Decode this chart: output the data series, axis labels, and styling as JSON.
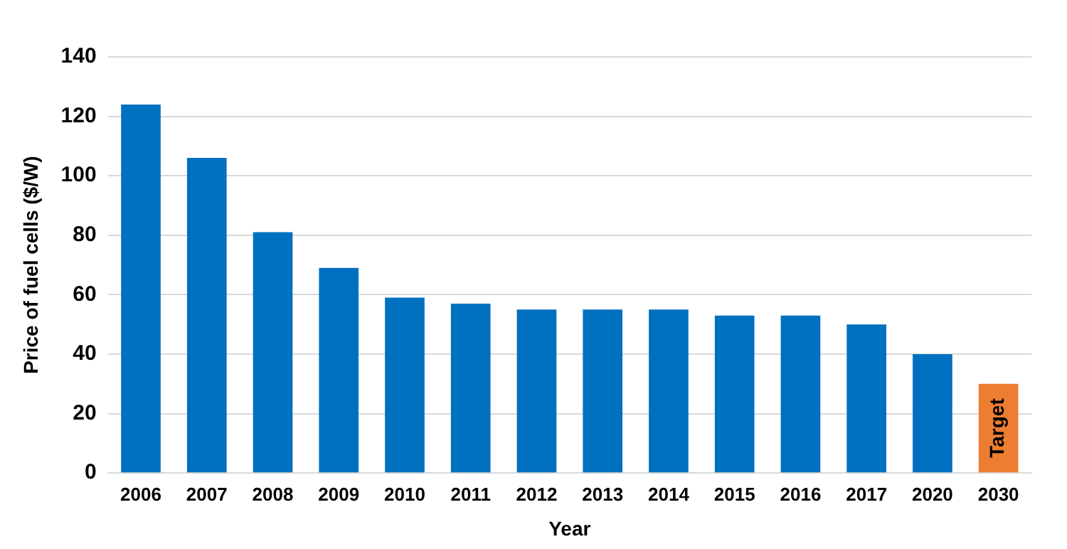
{
  "chart_data": {
    "type": "bar",
    "xlabel": "Year",
    "ylabel": "Price of fuel cells ($/W)",
    "categories": [
      "2006",
      "2007",
      "2008",
      "2009",
      "2010",
      "2011",
      "2012",
      "2013",
      "2014",
      "2015",
      "2016",
      "2017",
      "2020",
      "2030"
    ],
    "values": [
      124,
      106,
      81,
      69,
      59,
      57,
      55,
      55,
      55,
      53,
      53,
      50,
      40,
      30
    ],
    "colors": [
      "#0070c0",
      "#0070c0",
      "#0070c0",
      "#0070c0",
      "#0070c0",
      "#0070c0",
      "#0070c0",
      "#0070c0",
      "#0070c0",
      "#0070c0",
      "#0070c0",
      "#0070c0",
      "#0070c0",
      "#ed7d31"
    ],
    "ylim": [
      0,
      140
    ],
    "yticks": [
      0,
      20,
      40,
      60,
      80,
      100,
      120,
      140
    ],
    "grid": "y",
    "annotations": [
      "Target"
    ]
  }
}
